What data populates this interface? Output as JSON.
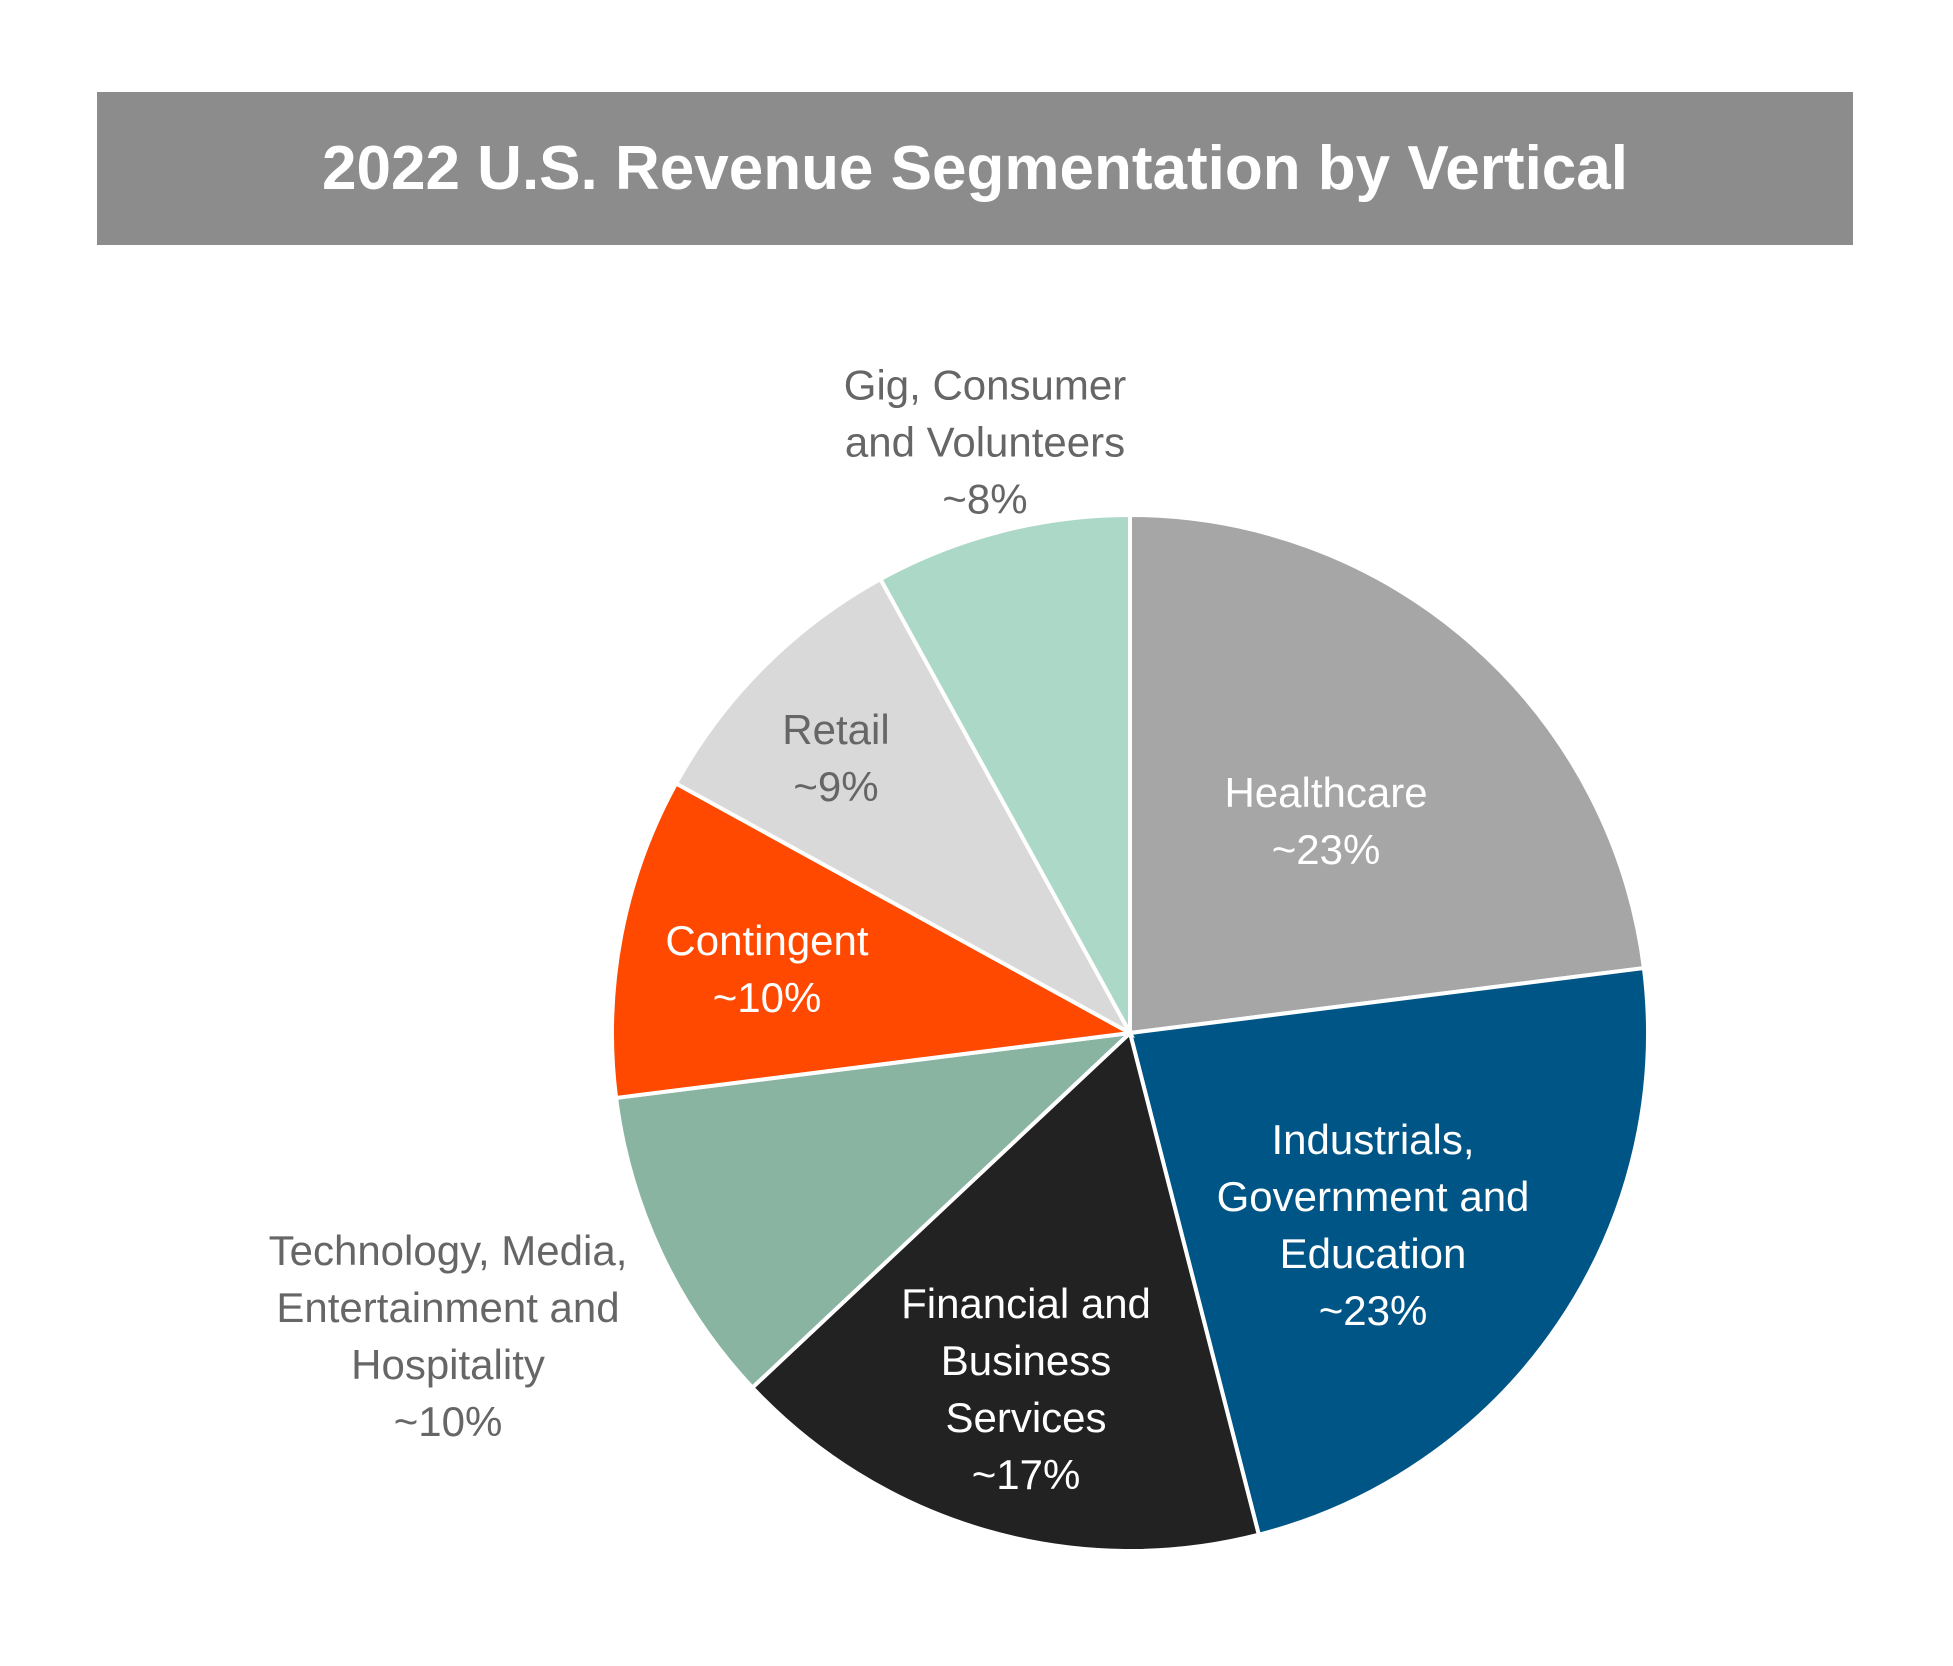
{
  "chart_data": {
    "type": "pie",
    "title": "2022 U.S. Revenue Segmentation by Vertical",
    "categories": [
      "Healthcare",
      "Industrials, Government and Education",
      "Financial and Business Services",
      "Technology, Media, Entertainment and Hospitality",
      "Contingent",
      "Retail",
      "Gig, Consumer and Volunteers"
    ],
    "values": [
      23,
      23,
      17,
      10,
      10,
      9,
      8
    ],
    "value_labels": [
      "~23%",
      "~23%",
      "~17%",
      "~10%",
      "~10%",
      "~9%",
      "~8%"
    ],
    "colors": [
      "#a6a6a6",
      "#005587",
      "#222222",
      "#8ab4a2",
      "#ff4800",
      "#d9d9d9",
      "#acd8c8"
    ]
  }
}
